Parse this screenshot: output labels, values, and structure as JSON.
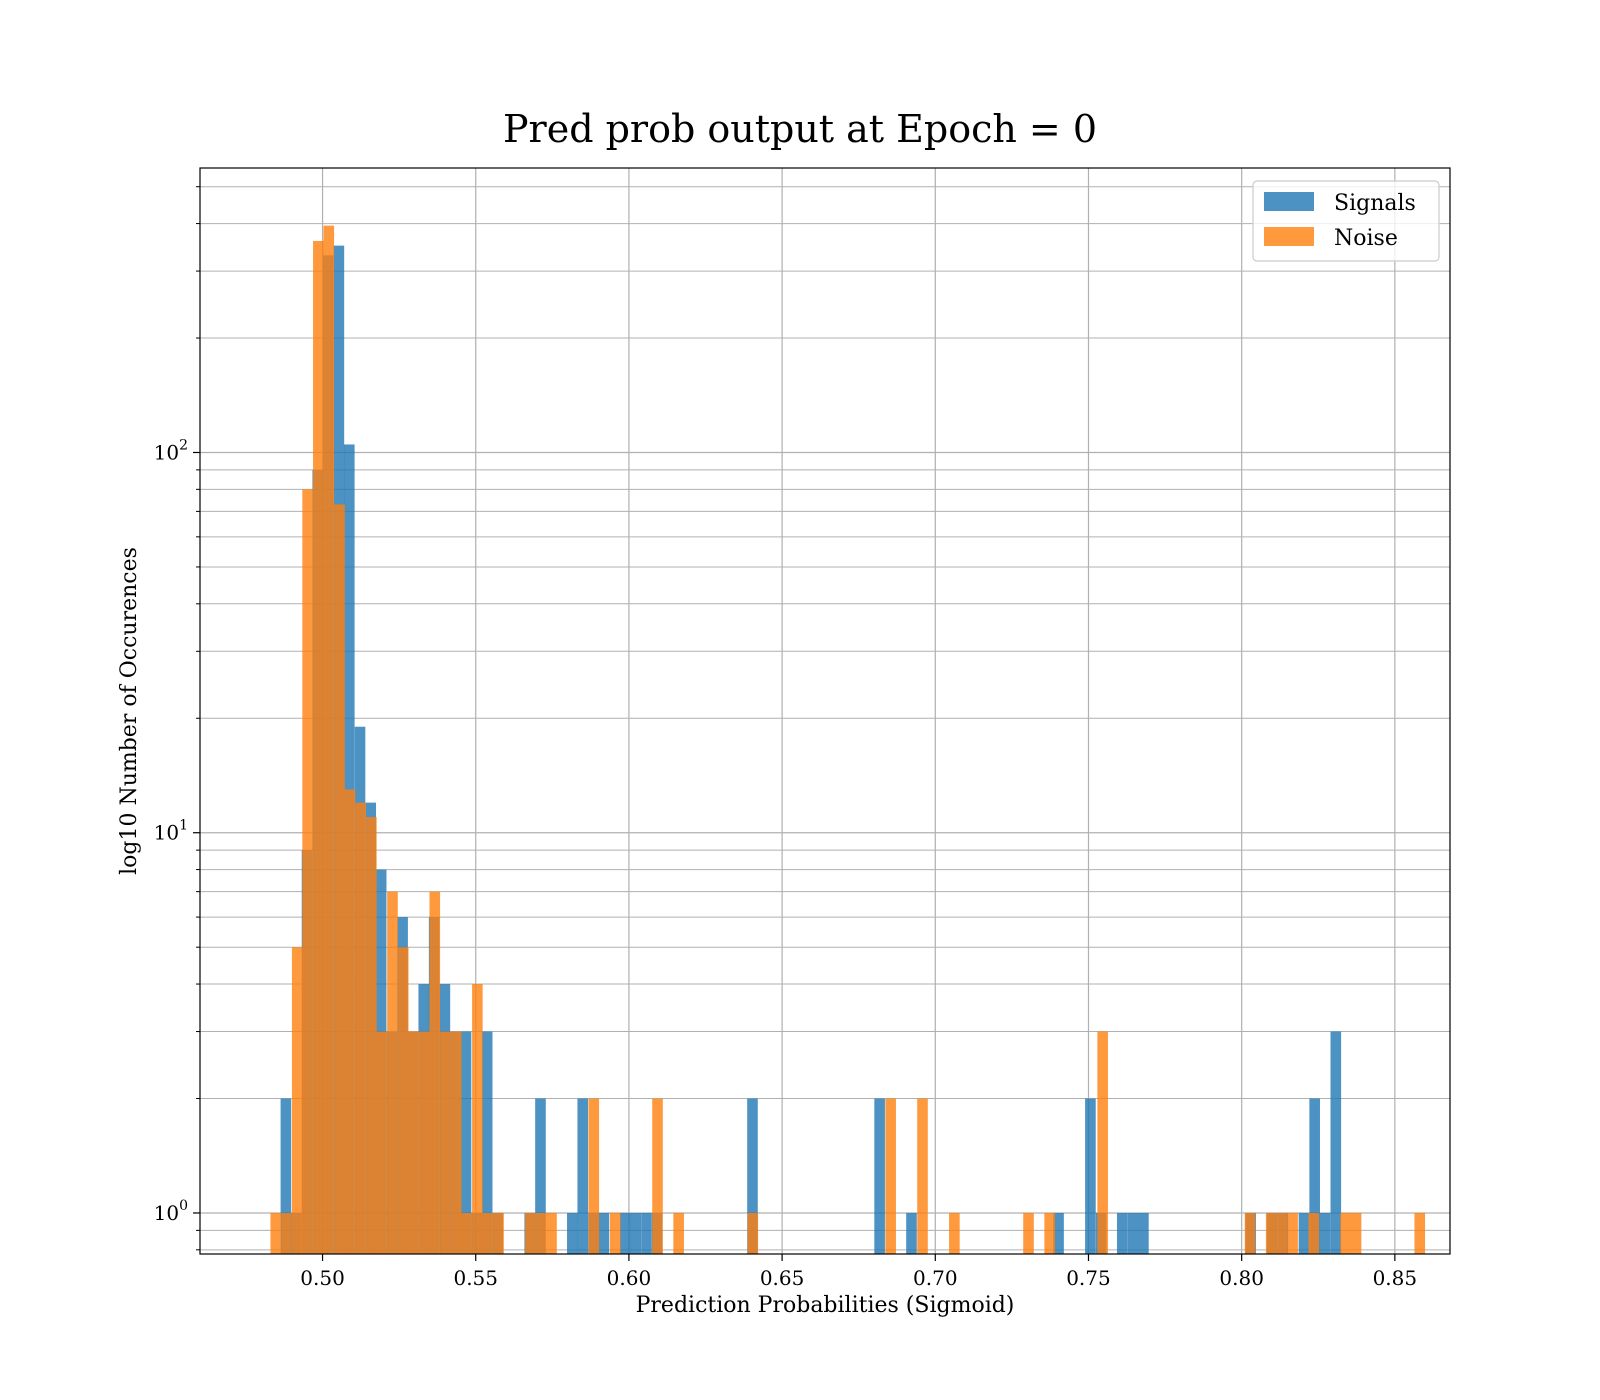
{
  "chart_data": {
    "type": "bar",
    "title": "Pred prob output at Epoch = 0",
    "xlabel": "Prediction Probabilities (Sigmoid)",
    "ylabel": "log10 Number of Occurences",
    "y_scale": "log",
    "xlim": [
      0.46,
      0.868
    ],
    "ylim": [
      0.78,
      560
    ],
    "x_ticks": [
      0.5,
      0.55,
      0.6,
      0.65,
      0.7,
      0.75,
      0.8,
      0.85
    ],
    "x_tick_labels": [
      "0.50",
      "0.55",
      "0.60",
      "0.65",
      "0.70",
      "0.75",
      "0.80",
      "0.85"
    ],
    "y_major_ticks": [
      1,
      10,
      100
    ],
    "y_tick_labels": [
      {
        "base": "10",
        "exp": "0"
      },
      {
        "base": "10",
        "exp": "1"
      },
      {
        "base": "10",
        "exp": "2"
      }
    ],
    "grid": true,
    "legend_position": "top-right",
    "series": [
      {
        "name": "Signals",
        "color": "#1f77b4",
        "opacity": 0.8,
        "bin_width": 0.00346,
        "bins": [
          [
            0.4863,
            2
          ],
          [
            0.4897,
            1
          ],
          [
            0.4932,
            9
          ],
          [
            0.4967,
            90
          ],
          [
            0.5001,
            330
          ],
          [
            0.5036,
            350
          ],
          [
            0.507,
            105
          ],
          [
            0.5105,
            19
          ],
          [
            0.514,
            12
          ],
          [
            0.5174,
            8
          ],
          [
            0.5209,
            3
          ],
          [
            0.5244,
            6
          ],
          [
            0.5278,
            3
          ],
          [
            0.5313,
            4
          ],
          [
            0.5347,
            6
          ],
          [
            0.5382,
            4
          ],
          [
            0.5417,
            3
          ],
          [
            0.5451,
            3
          ],
          [
            0.5486,
            1
          ],
          [
            0.552,
            3
          ],
          [
            0.5555,
            1
          ],
          [
            0.5659,
            1
          ],
          [
            0.5694,
            2
          ],
          [
            0.5798,
            1
          ],
          [
            0.5832,
            2
          ],
          [
            0.5867,
            1
          ],
          [
            0.5901,
            1
          ],
          [
            0.5971,
            1
          ],
          [
            0.6005,
            1
          ],
          [
            0.604,
            1
          ],
          [
            0.6075,
            1
          ],
          [
            0.6386,
            2
          ],
          [
            0.6801,
            2
          ],
          [
            0.6905,
            1
          ],
          [
            0.7385,
            1
          ],
          [
            0.7489,
            2
          ],
          [
            0.7524,
            1
          ],
          [
            0.7593,
            1
          ],
          [
            0.7628,
            1
          ],
          [
            0.7662,
            1
          ],
          [
            0.8012,
            1
          ],
          [
            0.8082,
            1
          ],
          [
            0.8117,
            1
          ],
          [
            0.8186,
            1
          ],
          [
            0.8221,
            2
          ],
          [
            0.8255,
            1
          ],
          [
            0.829,
            3
          ]
        ]
      },
      {
        "name": "Noise",
        "color": "#ff7f0e",
        "opacity": 0.8,
        "bin_width": 0.00346,
        "bins": [
          [
            0.483,
            1
          ],
          [
            0.4865,
            1
          ],
          [
            0.49,
            5
          ],
          [
            0.4934,
            80
          ],
          [
            0.4969,
            360
          ],
          [
            0.5003,
            395
          ],
          [
            0.5038,
            73
          ],
          [
            0.5072,
            13
          ],
          [
            0.5107,
            12
          ],
          [
            0.5142,
            11
          ],
          [
            0.5176,
            3
          ],
          [
            0.5211,
            7
          ],
          [
            0.5246,
            5
          ],
          [
            0.528,
            3
          ],
          [
            0.5315,
            3
          ],
          [
            0.5349,
            7
          ],
          [
            0.5384,
            3
          ],
          [
            0.5419,
            3
          ],
          [
            0.5453,
            1
          ],
          [
            0.5488,
            4
          ],
          [
            0.5522,
            1
          ],
          [
            0.5557,
            1
          ],
          [
            0.5661,
            1
          ],
          [
            0.5696,
            1
          ],
          [
            0.573,
            1
          ],
          [
            0.5868,
            2
          ],
          [
            0.5938,
            1
          ],
          [
            0.6076,
            2
          ],
          [
            0.6145,
            1
          ],
          [
            0.6387,
            1
          ],
          [
            0.6837,
            2
          ],
          [
            0.6941,
            2
          ],
          [
            0.7045,
            1
          ],
          [
            0.7287,
            1
          ],
          [
            0.7356,
            1
          ],
          [
            0.7529,
            3
          ],
          [
            0.801,
            1
          ],
          [
            0.8079,
            1
          ],
          [
            0.8114,
            1
          ],
          [
            0.8149,
            1
          ],
          [
            0.8218,
            1
          ],
          [
            0.8322,
            1
          ],
          [
            0.8356,
            1
          ],
          [
            0.8564,
            1
          ]
        ]
      }
    ]
  }
}
